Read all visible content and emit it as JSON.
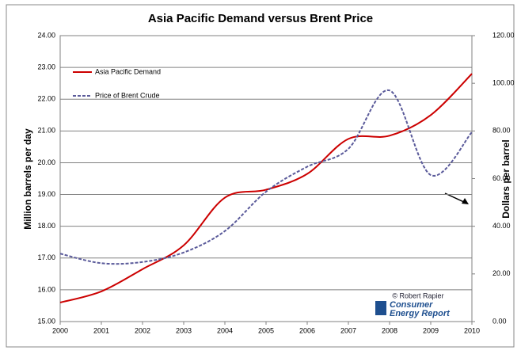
{
  "chart_data": {
    "type": "line",
    "title": "Asia Pacific Demand versus Brent Price",
    "ylabel": "Million barrels per day",
    "y2label": "Dollars per barrel",
    "x": [
      2000,
      2001,
      2002,
      2003,
      2004,
      2005,
      2006,
      2007,
      2008,
      2009,
      2010
    ],
    "xlim": [
      2000,
      2010
    ],
    "xticks": [
      2000,
      2001,
      2002,
      2003,
      2004,
      2005,
      2006,
      2007,
      2008,
      2009,
      2010
    ],
    "ylim": [
      15,
      24
    ],
    "yticks": [
      {
        "value": 15,
        "label": "15.00"
      },
      {
        "value": 16,
        "label": "16.00"
      },
      {
        "value": 17,
        "label": "17.00"
      },
      {
        "value": 18,
        "label": "18.00"
      },
      {
        "value": 19,
        "label": "19.00"
      },
      {
        "value": 20,
        "label": "20.00"
      },
      {
        "value": 21,
        "label": "21.00"
      },
      {
        "value": 22,
        "label": "22.00"
      },
      {
        "value": 23,
        "label": "23.00"
      },
      {
        "value": 24,
        "label": "24.00"
      }
    ],
    "y2lim": [
      0,
      120
    ],
    "y2ticks": [
      {
        "value": 0,
        "label": "0.00"
      },
      {
        "value": 20,
        "label": "20.00"
      },
      {
        "value": 40,
        "label": "40.00"
      },
      {
        "value": 60,
        "label": "60.00"
      },
      {
        "value": 80,
        "label": "80.00"
      },
      {
        "value": 100,
        "label": "100.00"
      },
      {
        "value": 120,
        "label": "120.00"
      }
    ],
    "grid": true,
    "legend": "upper left",
    "series": [
      {
        "name": "Asia Pacific Demand",
        "color": "#cc0000",
        "style": "solid",
        "values": [
          15.6,
          15.95,
          16.65,
          17.4,
          18.9,
          19.15,
          19.65,
          20.75,
          20.85,
          21.5,
          22.8
        ]
      },
      {
        "name": "Price of Brent Crude",
        "color": "#5a5a9a",
        "style": "dashed",
        "axis": "y2",
        "values": [
          28.5,
          24.5,
          25,
          29,
          38,
          54.5,
          65,
          72.5,
          97,
          61.5,
          79.5
        ]
      }
    ],
    "annotations": [
      "© Robert Rapier",
      "Consumer",
      "Energy Report"
    ]
  }
}
